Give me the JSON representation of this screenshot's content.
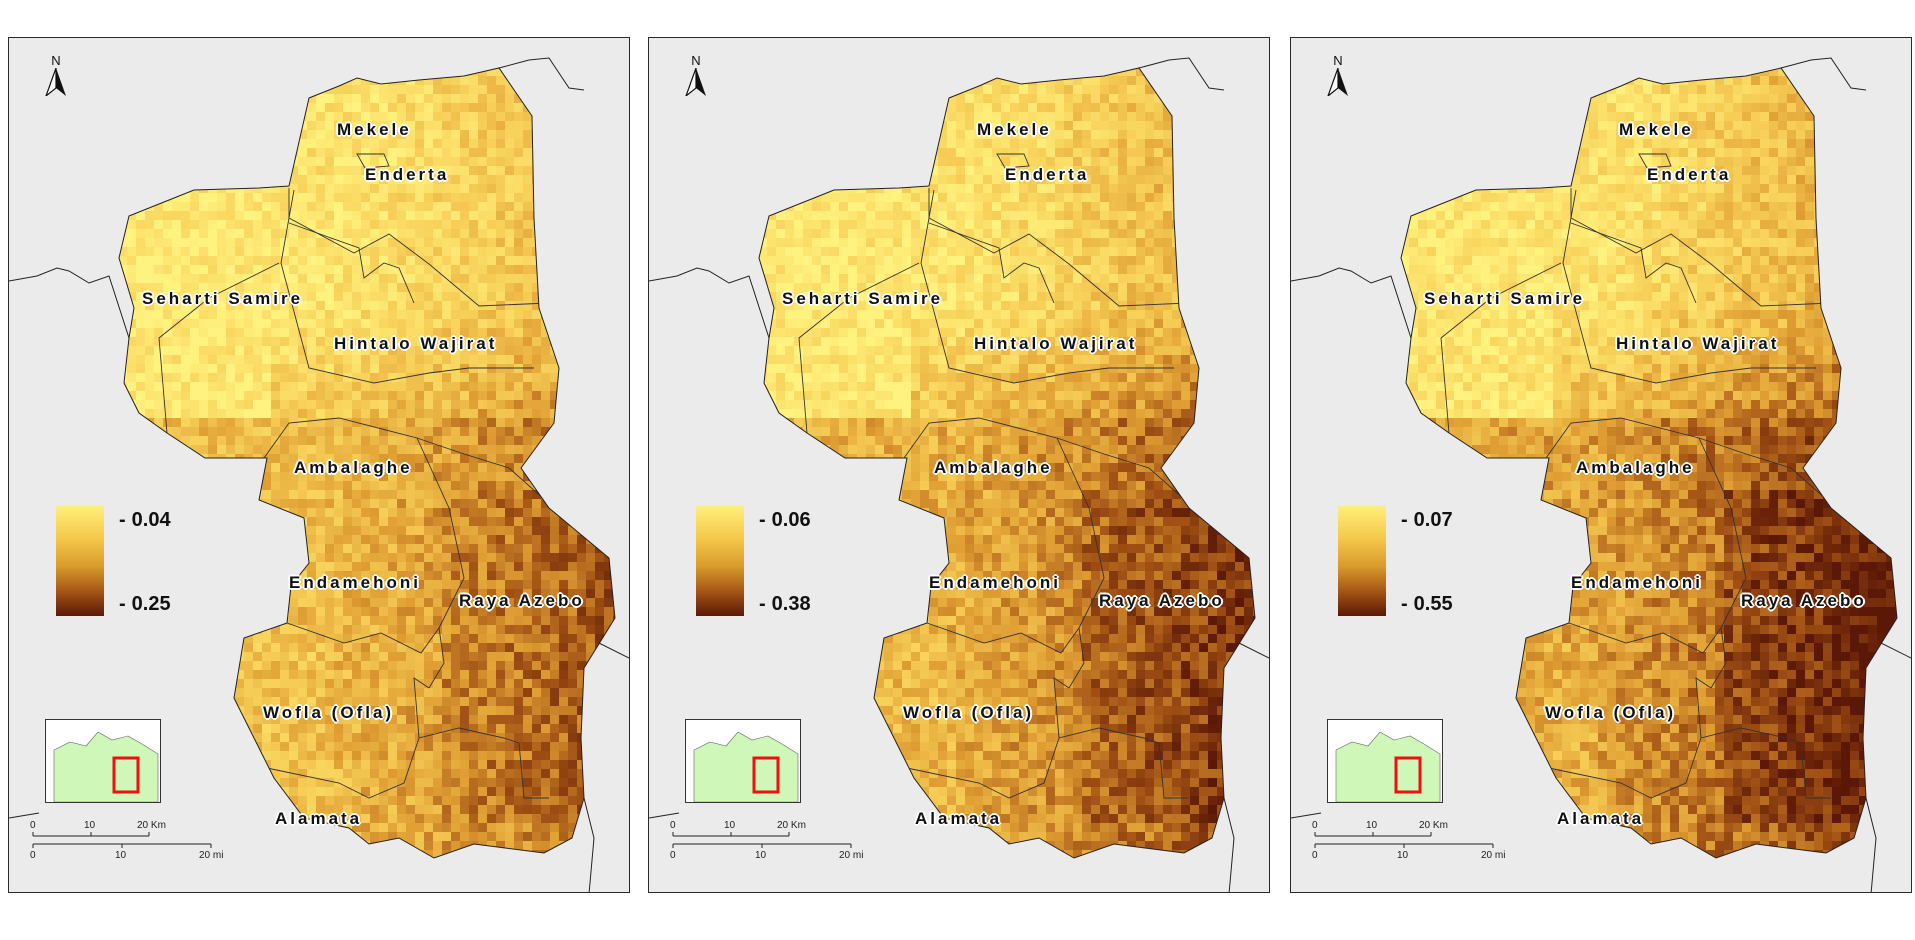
{
  "panels": [
    {
      "legend": {
        "high": "0.04",
        "low": "0.25"
      }
    },
    {
      "legend": {
        "high": "0.06",
        "low": "0.38"
      }
    },
    {
      "legend": {
        "high": "0.07",
        "low": "0.55"
      }
    }
  ],
  "north_label": "N",
  "districts": [
    "Mekele",
    "Enderta",
    "Seharti Samire",
    "Hintalo Wajirat",
    "Ambalaghe",
    "Endamehoni",
    "Raya Azebo",
    "Wofla (Ofla)",
    "Alamata"
  ],
  "scale": {
    "km_ticks": [
      "0",
      "10",
      "20 Km"
    ],
    "mi_ticks": [
      "0",
      "10",
      "20 mi"
    ]
  },
  "colors": {
    "light": "#fff27e",
    "mid": "#e3a63a",
    "dark": "#5a1806",
    "inset_land": "#cff7b8",
    "inset_box": "#ee1111",
    "background": "#ebebeb"
  }
}
